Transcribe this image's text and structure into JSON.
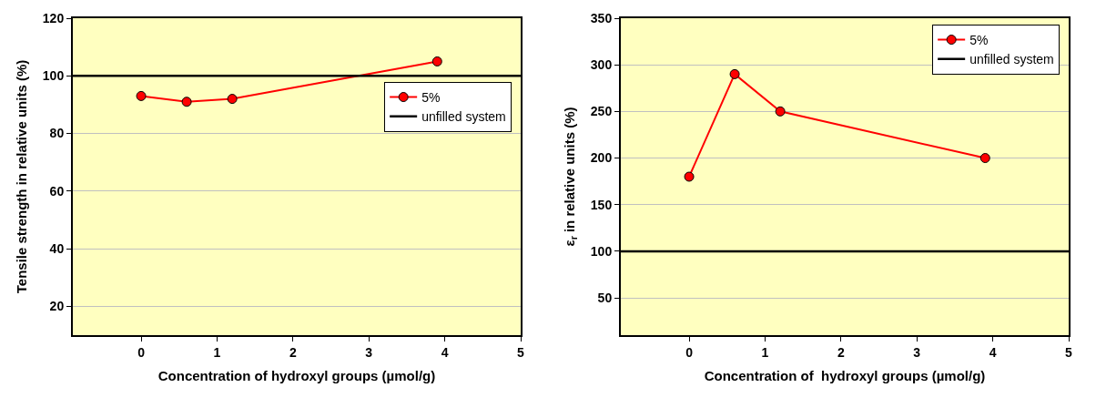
{
  "chart_data": [
    {
      "type": "line",
      "xlabel": "Concentration of hydroxyl groups (µmol/g)",
      "ylabel": "Tensile strength in relative units (%)",
      "series": [
        {
          "name": "5%",
          "color": "#ff0000",
          "x": [
            0,
            0.6,
            1.2,
            3.9
          ],
          "values": [
            93,
            91,
            92,
            105
          ]
        }
      ],
      "ref_lines": [
        {
          "axis": "y",
          "value": 100,
          "label": "unfilled system",
          "color": "#000000"
        }
      ],
      "xlim": [
        -0.9,
        5
      ],
      "xticks": [
        0,
        1,
        2,
        3,
        4,
        5
      ],
      "ylim": [
        10,
        120
      ],
      "yticks": [
        20,
        40,
        60,
        80,
        100,
        120
      ],
      "grid": "y",
      "legend": "right",
      "marker": "circle",
      "line_style": "solid"
    },
    {
      "type": "line",
      "xlabel": "Concentration of  hydroxyl groups (µmol/g)",
      "ylabel": "ε$_{r}$ in relative units (%)",
      "series": [
        {
          "name": "5%",
          "color": "#ff0000",
          "x": [
            0,
            0.6,
            1.2,
            3.9
          ],
          "values": [
            180,
            290,
            250,
            200
          ]
        }
      ],
      "ref_lines": [
        {
          "axis": "y",
          "value": 100,
          "label": "unfilled system",
          "color": "#000000"
        }
      ],
      "xlim": [
        -0.9,
        5
      ],
      "xticks": [
        0,
        1,
        2,
        3,
        4,
        5
      ],
      "ylim": [
        10,
        350
      ],
      "yticks": [
        50,
        100,
        150,
        200,
        250,
        300,
        350
      ],
      "grid": "y",
      "legend": "top right",
      "marker": "circle",
      "line_style": "solid"
    }
  ]
}
